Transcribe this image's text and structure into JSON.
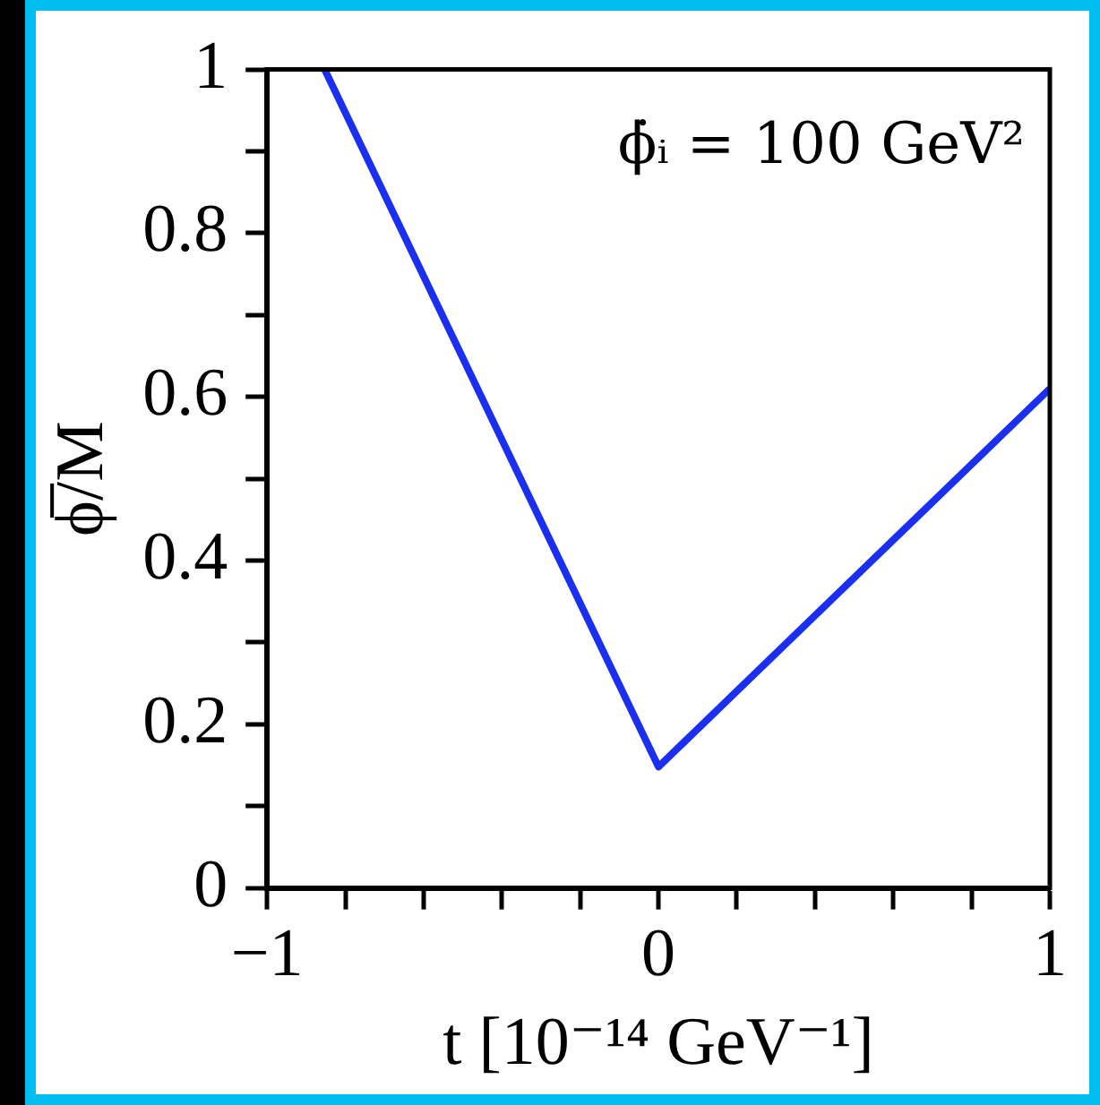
{
  "chart_data": {
    "type": "line",
    "xlabel": "t [10⁻¹⁴ GeV⁻¹]",
    "ylabel": "ϕ̅/M",
    "annotations": [
      "ϕ̇ᵢ = 100 GeV²"
    ],
    "series": [
      {
        "color": "#1a2ff0",
        "x": [
          -0.853,
          0,
          1
        ],
        "values": [
          1,
          0.148,
          0.61
        ]
      }
    ],
    "xlim": [
      -1,
      1
    ],
    "xticks": [
      {
        "value": -1,
        "label": "−1"
      },
      {
        "value": -0.8,
        "label": null
      },
      {
        "value": -0.6,
        "label": null
      },
      {
        "value": -0.4,
        "label": null
      },
      {
        "value": -0.2,
        "label": null
      },
      0,
      {
        "value": 0.2,
        "label": null
      },
      {
        "value": 0.4,
        "label": null
      },
      {
        "value": 0.6,
        "label": null
      },
      {
        "value": 0.8,
        "label": null
      },
      1
    ],
    "ylim": [
      0,
      1
    ],
    "yticks": [
      0,
      {
        "value": 0.1,
        "label": null
      },
      0.2,
      {
        "value": 0.3,
        "label": null
      },
      0.4,
      {
        "value": 0.5,
        "label": null
      },
      0.6,
      {
        "value": 0.7,
        "label": null
      },
      0.8,
      {
        "value": 0.9,
        "label": null
      },
      1
    ],
    "grid": false,
    "legend": false,
    "marker": "none",
    "line_style": "solid"
  }
}
